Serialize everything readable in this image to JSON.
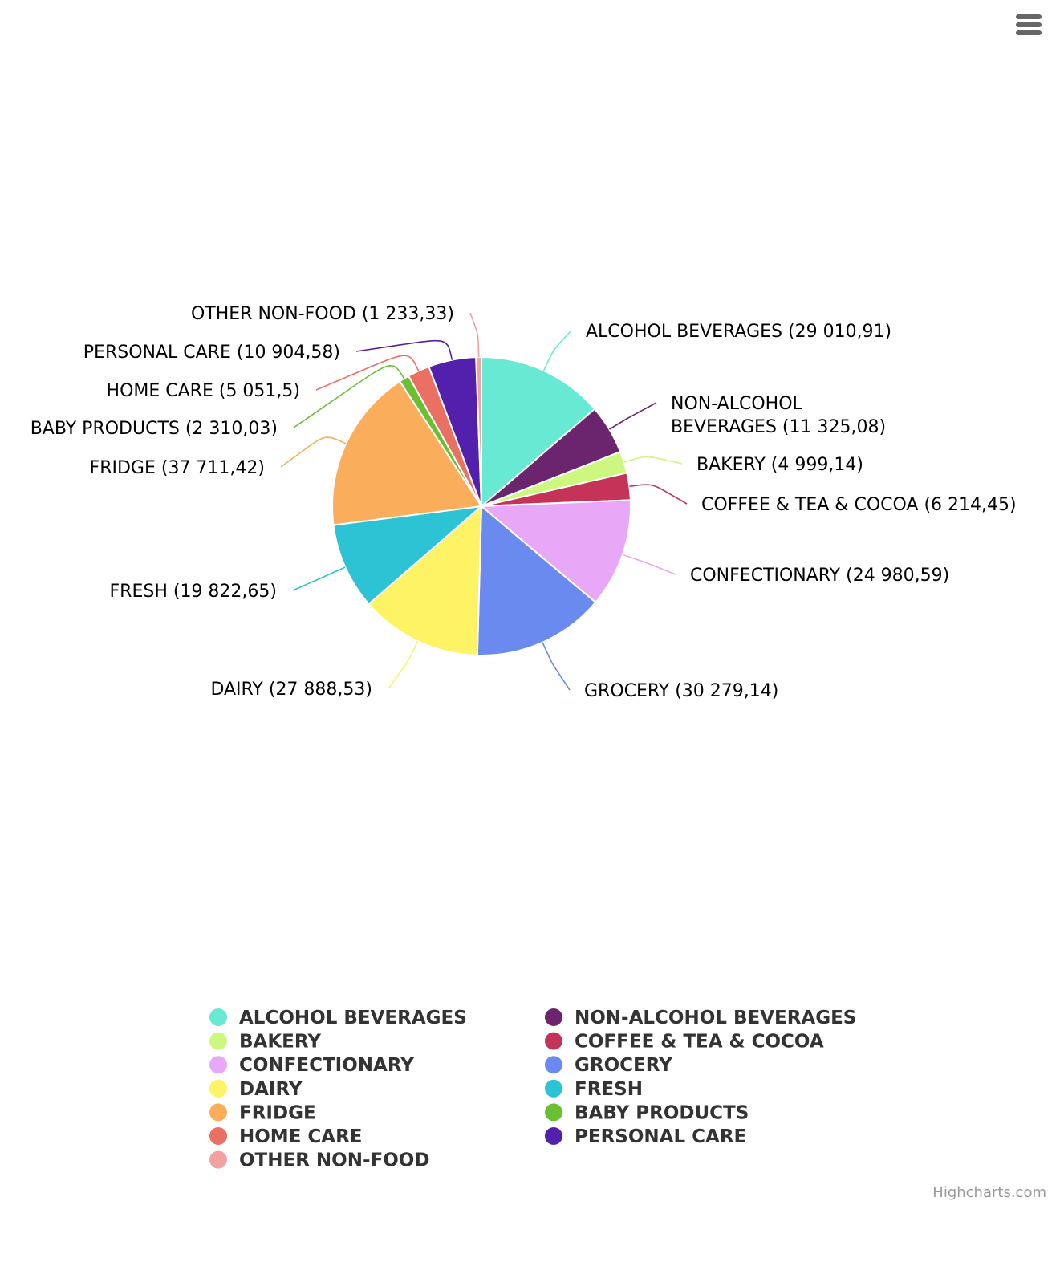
{
  "chart_data": {
    "type": "pie",
    "title": "",
    "legend": {
      "placement": "bottom",
      "columns": 2
    },
    "series": [
      {
        "data": [
          {
            "name": "ALCOHOL BEVERAGES",
            "value": 29010.91,
            "label": "ALCOHOL BEVERAGES (29 010,91)",
            "color": "#68E9D4"
          },
          {
            "name": "NON-ALCOHOL BEVERAGES",
            "value": 11325.08,
            "label": "NON-ALCOHOL BEVERAGES (11 325,08)",
            "label_lines": [
              "NON-ALCOHOL",
              "BEVERAGES (11 325,08)"
            ],
            "color": "#6B246E"
          },
          {
            "name": "BAKERY",
            "value": 4999.14,
            "label": "BAKERY (4 999,14)",
            "color": "#CCF880"
          },
          {
            "name": "COFFEE & TEA & COCOA",
            "value": 6214.45,
            "label": "COFFEE & TEA & COCOA (6 214,45)",
            "color": "#C53358"
          },
          {
            "name": "CONFECTIONARY",
            "value": 24980.59,
            "label": "CONFECTIONARY (24 980,59)",
            "color": "#E9A8F7"
          },
          {
            "name": "GROCERY",
            "value": 30279.14,
            "label": "GROCERY (30 279,14)",
            "color": "#6A8AF0"
          },
          {
            "name": "DAIRY",
            "value": 27888.53,
            "label": "DAIRY (27 888,53)",
            "color": "#FDF365"
          },
          {
            "name": "FRESH",
            "value": 19822.65,
            "label": "FRESH (19 822,65)",
            "color": "#2CC3D5"
          },
          {
            "name": "FRIDGE",
            "value": 37711.42,
            "label": "FRIDGE (37 711,42)",
            "color": "#FAAE5B"
          },
          {
            "name": "BABY PRODUCTS",
            "value": 2310.03,
            "label": "BABY PRODUCTS (2 310,03)",
            "color": "#6BBF32"
          },
          {
            "name": "HOME CARE",
            "value": 5051.5,
            "label": "HOME CARE (5 051,5)",
            "color": "#E97063"
          },
          {
            "name": "PERSONAL CARE",
            "value": 10904.58,
            "label": "PERSONAL CARE (10 904,58)",
            "color": "#531FAD"
          },
          {
            "name": "OTHER NON-FOOD",
            "value": 1233.33,
            "label": "OTHER NON-FOOD (1 233,33)",
            "color": "#F3A0A0"
          }
        ]
      }
    ]
  },
  "legend_order": [
    "ALCOHOL BEVERAGES",
    "NON-ALCOHOL BEVERAGES",
    "BAKERY",
    "COFFEE & TEA & COCOA",
    "CONFECTIONARY",
    "GROCERY",
    "DAIRY",
    "FRESH",
    "FRIDGE",
    "BABY PRODUCTS",
    "HOME CARE",
    "PERSONAL CARE",
    "OTHER NON-FOOD"
  ],
  "credits": "Highcharts.com",
  "menu": {
    "icon": "hamburger-menu-icon"
  }
}
